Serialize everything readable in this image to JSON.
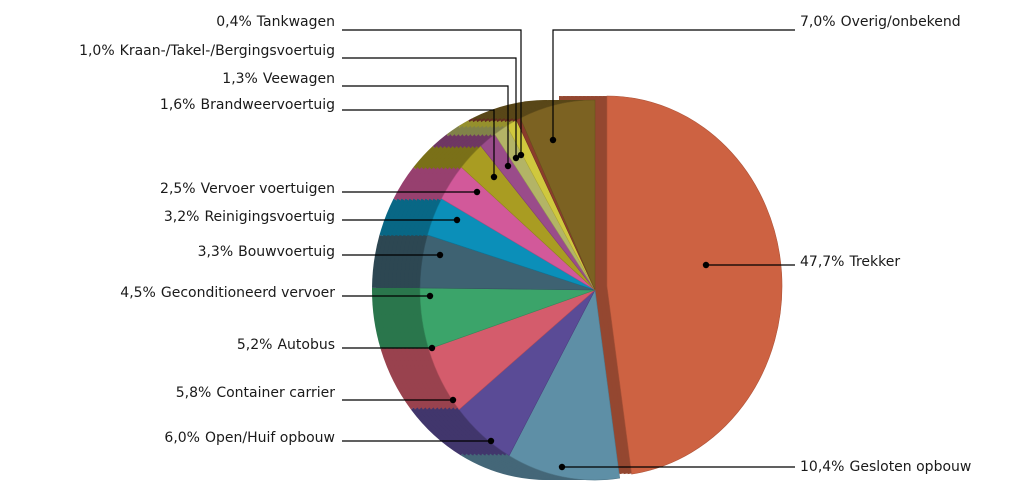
{
  "chart_data": {
    "type": "pie",
    "categories": [
      "Trekker",
      "Gesloten opbouw",
      "Open/Huif opbouw",
      "Container carrier",
      "Autobus",
      "Geconditioneerd vervoer",
      "Bouwvoertuig",
      "Reinigingsvoertuig",
      "Vervoer voertuigen",
      "Brandweervoertuig",
      "Veewagen",
      "Kraan-/Takel-/Bergingsvoertuig",
      "Tankwagen",
      "Overig/onbekend"
    ],
    "values": [
      47.7,
      10.4,
      6.0,
      5.8,
      5.2,
      4.5,
      3.3,
      3.2,
      2.5,
      1.6,
      1.3,
      1.0,
      0.4,
      7.0
    ],
    "value_labels": [
      "47,7%",
      "10,4%",
      "6,0%",
      "5,8%",
      "5,2%",
      "4,5%",
      "3,3%",
      "3,2%",
      "2,5%",
      "1,6%",
      "1,3%",
      "1,0%",
      "0,4%",
      "7,0%"
    ],
    "colors": [
      "#cd6242",
      "#5e8fa6",
      "#5a4b96",
      "#d45c6c",
      "#3ba46a",
      "#3e6272",
      "#0b8fb9",
      "#d2599a",
      "#a99c22",
      "#9a4c8a",
      "#b3b466",
      "#cfc83e",
      "#8a3c2c",
      "#7c6222"
    ]
  }
}
